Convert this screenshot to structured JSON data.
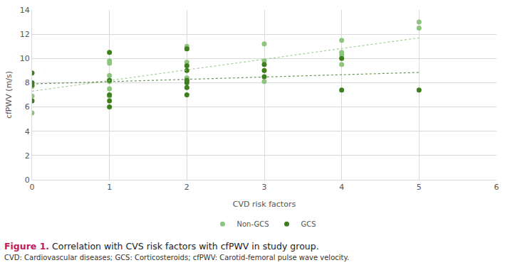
{
  "chart_data": {
    "type": "scatter",
    "x_label": "CVD risk factors",
    "y_label": "cfPWV (m/s)",
    "xlim": [
      0,
      6
    ],
    "xticks": [
      0,
      1,
      2,
      3,
      4,
      5,
      6
    ],
    "ylim": [
      0,
      14
    ],
    "yticks": [
      0,
      2,
      4,
      6,
      8,
      10,
      12,
      14
    ],
    "grid": true,
    "legend": "bottom",
    "marker": "circle",
    "series": [
      {
        "name": "Non-GCS",
        "color": "#8fc47e",
        "x": [
          0,
          0,
          0,
          1,
          1,
          1,
          1,
          1,
          1,
          2,
          2,
          2,
          2,
          2,
          3,
          3,
          3,
          4,
          4,
          4,
          4,
          5,
          5
        ],
        "values": [
          7.7,
          6.9,
          5.5,
          9.8,
          9.6,
          8.6,
          8.1,
          7.5,
          6.9,
          11.0,
          10.8,
          9.7,
          8.4,
          8.2,
          11.2,
          9.8,
          8.1,
          11.5,
          10.5,
          10.3,
          9.5,
          13.0,
          12.5
        ],
        "trend_x": [
          0,
          5
        ],
        "trend_values": [
          7.3,
          11.7
        ],
        "line_style": "dotted"
      },
      {
        "name": "GCS",
        "color": "#3d7f1c",
        "x": [
          0,
          0,
          0,
          0,
          1,
          1,
          1,
          1,
          1,
          2,
          2,
          2,
          2,
          2,
          2,
          2,
          3,
          3,
          3,
          4,
          4,
          5
        ],
        "values": [
          8.8,
          8.0,
          7.8,
          6.5,
          10.5,
          8.2,
          7.0,
          6.5,
          6.0,
          10.8,
          9.4,
          9.0,
          8.2,
          8.0,
          7.6,
          7.0,
          9.5,
          9.0,
          8.5,
          10.0,
          7.4,
          7.4
        ],
        "trend_x": [
          0,
          5
        ],
        "trend_values": [
          7.9,
          8.85
        ],
        "line_style": "dotted"
      }
    ],
    "caption": {
      "label": "Figure 1.",
      "text": "Correlation with CVS risk factors with cfPWV in study group.",
      "note": "CVD: Cardiovascular diseases; GCS: Corticosteroids; cfPWV: Carotid-femoral pulse wave velocity."
    }
  }
}
